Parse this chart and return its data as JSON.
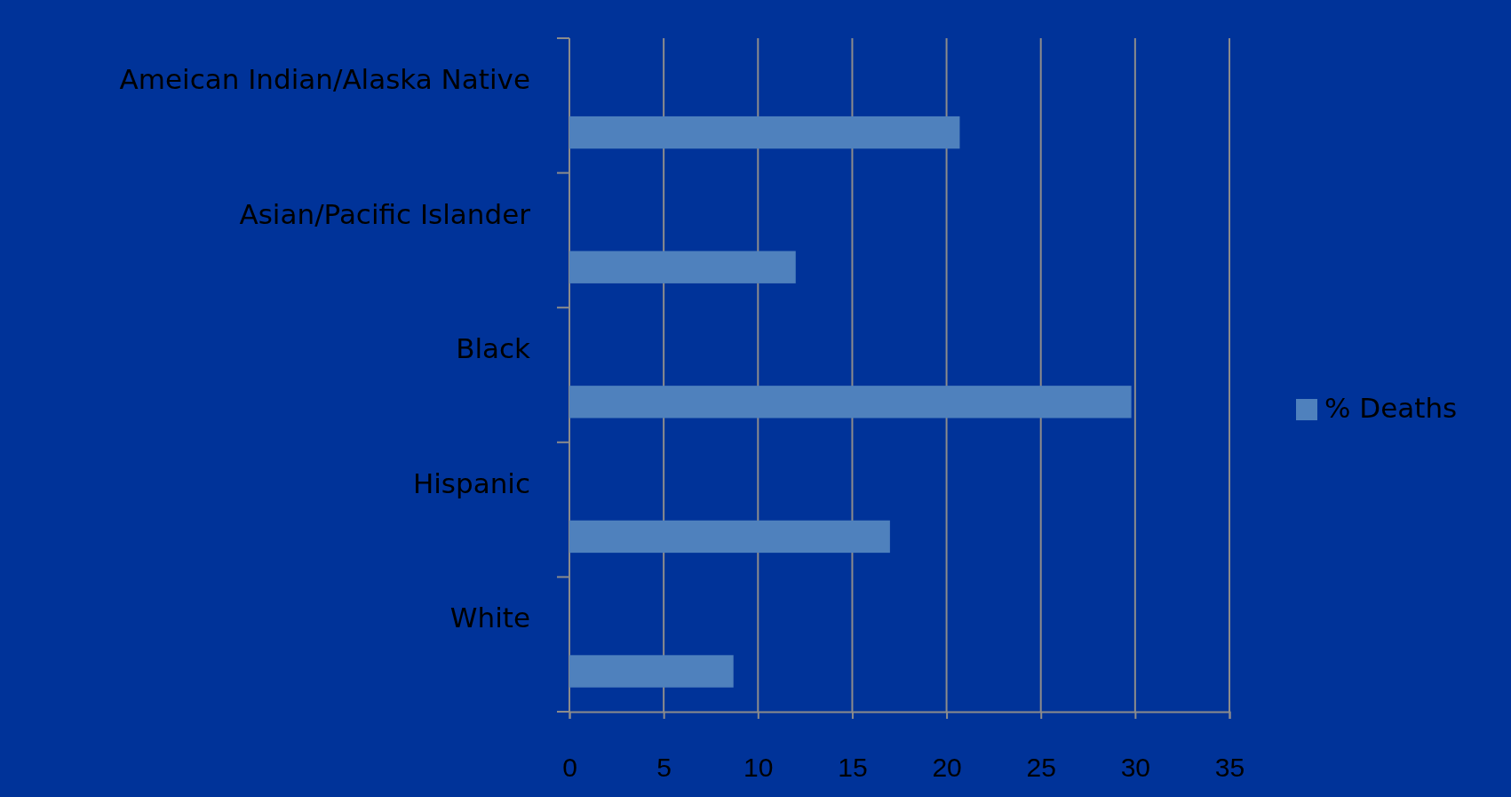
{
  "chart_data": {
    "type": "bar",
    "orientation": "horizontal",
    "categories": [
      "Ameican Indian/Alaska Native",
      "Asian/Pacific Islander",
      "Black",
      "Hispanic",
      "White"
    ],
    "series": [
      {
        "name": "%  Deaths",
        "color": "#4f81bd",
        "values": [
          20.7,
          12,
          29.8,
          17,
          8.7
        ]
      }
    ],
    "xlim": [
      0,
      35
    ],
    "xticks": [
      0,
      5,
      10,
      15,
      20,
      25,
      30,
      35
    ],
    "grid": "x",
    "legend": "right"
  }
}
